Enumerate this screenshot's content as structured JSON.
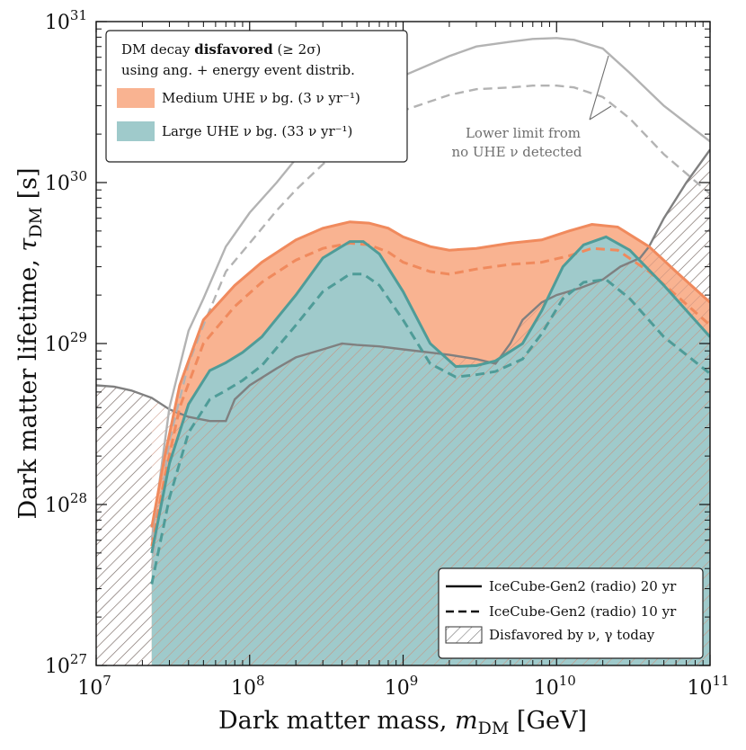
{
  "chart_data": {
    "type": "area",
    "xscale": "log",
    "yscale": "log",
    "xlim": [
      10000000.0,
      100000000000.0
    ],
    "ylim": [
      1e+27,
      1e+31
    ],
    "xlabel": "Dark matter mass, m_DM [GeV]",
    "ylabel": "Dark matter lifetime, τ_DM [s]",
    "x_ticks": [
      {
        "value": 10000000.0,
        "label_base": "10",
        "label_exp": "7"
      },
      {
        "value": 100000000.0,
        "label_base": "10",
        "label_exp": "8"
      },
      {
        "value": 1000000000.0,
        "label_base": "10",
        "label_exp": "9"
      },
      {
        "value": 10000000000.0,
        "label_base": "10",
        "label_exp": "10"
      },
      {
        "value": 100000000000.0,
        "label_base": "10",
        "label_exp": "11"
      }
    ],
    "y_ticks": [
      {
        "value": 1e+27,
        "label_base": "10",
        "label_exp": "27"
      },
      {
        "value": 1e+28,
        "label_base": "10",
        "label_exp": "28"
      },
      {
        "value": 1e+29,
        "label_base": "10",
        "label_exp": "29"
      },
      {
        "value": 1e+30,
        "label_base": "10",
        "label_exp": "30"
      },
      {
        "value": 1e+31,
        "label_base": "10",
        "label_exp": "31"
      }
    ],
    "grid": false,
    "legend_top": {
      "placement": "top-left",
      "title_line1_pre": "DM decay ",
      "title_line1_bold": "disfavored",
      "title_line1_post": " (≥ 2σ)",
      "title_line2": "using ang. + energy event distrib.",
      "entries": [
        {
          "label": "Medium UHE ν bg. (3 ν yr⁻¹)",
          "color": "#f9b391"
        },
        {
          "label": "Large UHE ν bg. (33 ν yr⁻¹)",
          "color": "#9fcacb"
        }
      ]
    },
    "legend_bottom": {
      "placement": "bottom-right",
      "entries": [
        {
          "label": "IceCube-Gen2 (radio) 20 yr",
          "style": "solid"
        },
        {
          "label": "IceCube-Gen2 (radio) 10 yr",
          "style": "dashed"
        },
        {
          "label": "Disfavored by ν, γ today",
          "style": "hatch"
        }
      ]
    },
    "annotation": {
      "line1": "Lower limit from",
      "line2": "no UHE ν detected"
    },
    "series": [
      {
        "name": "Medium UHE ν bg. (3 ν yr⁻¹)",
        "style": "solid",
        "color": "#f08a5d",
        "x": [
          23000000.0,
          28000000.0,
          35000000.0,
          50000000.0,
          80000000.0,
          120000000.0,
          200000000.0,
          300000000.0,
          450000000.0,
          600000000.0,
          800000000.0,
          1000000000.0,
          1500000000.0,
          2000000000.0,
          3000000000.0,
          5000000000.0,
          8000000000.0,
          12000000000.0,
          17000000000.0,
          25000000000.0,
          40000000000.0,
          60000000000.0,
          100000000000.0
        ],
        "y": [
          7.2e+27,
          2e+28,
          5.5e+28,
          1.4e+29,
          2.3e+29,
          3.2e+29,
          4.4e+29,
          5.2e+29,
          5.7e+29,
          5.6e+29,
          5.2e+29,
          4.6e+29,
          4e+29,
          3.8e+29,
          3.9e+29,
          4.2e+29,
          4.4e+29,
          5e+29,
          5.5e+29,
          5.3e+29,
          4e+29,
          2.8e+29,
          1.8e+29
        ]
      },
      {
        "name": "Medium UHE ν bg. (3 ν yr⁻¹)",
        "style": "dashed",
        "color": "#f08a5d",
        "x": [
          23000000.0,
          28000000.0,
          35000000.0,
          50000000.0,
          80000000.0,
          120000000.0,
          200000000.0,
          300000000.0,
          450000000.0,
          600000000.0,
          800000000.0,
          1000000000.0,
          1500000000.0,
          2000000000.0,
          3000000000.0,
          5000000000.0,
          8000000000.0,
          12000000000.0,
          17000000000.0,
          25000000000.0,
          40000000000.0,
          60000000000.0,
          100000000000.0
        ],
        "y": [
          5.5e+27,
          1.5e+28,
          4e+28,
          1e+29,
          1.7e+29,
          2.4e+29,
          3.3e+29,
          3.9e+29,
          4.2e+29,
          4.1e+29,
          3.7e+29,
          3.2e+29,
          2.8e+29,
          2.7e+29,
          2.9e+29,
          3.1e+29,
          3.2e+29,
          3.5e+29,
          3.9e+29,
          3.8e+29,
          2.8e+29,
          2e+29,
          1.3e+29
        ]
      },
      {
        "name": "Large UHE ν bg. (33 ν yr⁻¹)",
        "style": "solid",
        "color": "#4f9c98",
        "x": [
          23000000.0,
          30000000.0,
          40000000.0,
          55000000.0,
          70000000.0,
          90000000.0,
          120000000.0,
          200000000.0,
          300000000.0,
          450000000.0,
          550000000.0,
          700000000.0,
          1000000000.0,
          1500000000.0,
          2200000000.0,
          3000000000.0,
          4000000000.0,
          6000000000.0,
          8000000000.0,
          11000000000.0,
          15000000000.0,
          21000000000.0,
          30000000000.0,
          50000000000.0,
          100000000000.0
        ],
        "y": [
          5e+27,
          1.8e+28,
          4.2e+28,
          6.8e+28,
          7.6e+28,
          8.8e+28,
          1.1e+29,
          2e+29,
          3.4e+29,
          4.3e+29,
          4.3e+29,
          3.6e+29,
          2.1e+29,
          1e+29,
          7.2e+28,
          7.3e+28,
          7.8e+28,
          1e+29,
          1.6e+29,
          3e+29,
          4.1e+29,
          4.6e+29,
          3.8e+29,
          2.3e+29,
          1.1e+29
        ]
      },
      {
        "name": "Large UHE ν bg. (33 ν yr⁻¹)",
        "style": "dashed",
        "color": "#4f9c98",
        "x": [
          23000000.0,
          30000000.0,
          40000000.0,
          55000000.0,
          70000000.0,
          90000000.0,
          120000000.0,
          200000000.0,
          300000000.0,
          450000000.0,
          550000000.0,
          700000000.0,
          1000000000.0,
          1500000000.0,
          2200000000.0,
          3000000000.0,
          4000000000.0,
          6000000000.0,
          8000000000.0,
          11000000000.0,
          15000000000.0,
          21000000000.0,
          30000000000.0,
          50000000000.0,
          100000000000.0
        ],
        "y": [
          3.2e+27,
          1.1e+28,
          2.8e+28,
          4.5e+28,
          5.1e+28,
          5.9e+28,
          7.3e+28,
          1.3e+29,
          2.1e+29,
          2.7e+29,
          2.7e+29,
          2.3e+29,
          1.4e+29,
          7.5e+28,
          6.2e+28,
          6.4e+28,
          6.7e+28,
          8e+28,
          1.15e+29,
          1.9e+29,
          2.4e+29,
          2.5e+29,
          1.9e+29,
          1.1e+29,
          6.5e+28
        ]
      },
      {
        "name": "Lower limit from no UHE ν detected",
        "style": "solid",
        "color": "#b3b3b3",
        "x": [
          23000000.0,
          30000000.0,
          40000000.0,
          50000000.0,
          70000000.0,
          100000000.0,
          150000000.0,
          200000000.0,
          300000000.0,
          500000000.0,
          700000000.0,
          1000000000.0,
          2000000000.0,
          3000000000.0,
          5000000000.0,
          7000000000.0,
          10000000000.0,
          13000000000.0,
          20000000000.0,
          30000000000.0,
          50000000000.0,
          100000000000.0
        ],
        "y": [
          6e+27,
          4e+28,
          1.2e+29,
          1.9e+29,
          4e+29,
          6.5e+29,
          1e+30,
          1.4e+30,
          2e+30,
          3e+30,
          3.8e+30,
          4.6e+30,
          6.1e+30,
          7e+30,
          7.5e+30,
          7.8e+30,
          7.9e+30,
          7.7e+30,
          6.8e+30,
          4.8e+30,
          3e+30,
          1.8e+30
        ]
      },
      {
        "name": "Lower limit from no UHE ν detected",
        "style": "dashed",
        "color": "#b3b3b3",
        "x": [
          23000000.0,
          30000000.0,
          40000000.0,
          50000000.0,
          70000000.0,
          100000000.0,
          150000000.0,
          200000000.0,
          300000000.0,
          500000000.0,
          700000000.0,
          1000000000.0,
          2000000000.0,
          3000000000.0,
          5000000000.0,
          7000000000.0,
          10000000000.0,
          13000000000.0,
          20000000000.0,
          30000000000.0,
          50000000000.0,
          100000000000.0
        ],
        "y": [
          4e+27,
          2.5e+28,
          7.5e+28,
          1.3e+29,
          2.8e+29,
          4.2e+29,
          6.7e+29,
          9e+29,
          1.3e+30,
          1.9e+30,
          2.4e+30,
          2.8e+30,
          3.5e+30,
          3.8e+30,
          3.9e+30,
          4e+30,
          4e+30,
          3.9e+30,
          3.4e+30,
          2.5e+30,
          1.5e+30,
          8.5e+29
        ]
      },
      {
        "name": "Disfavored by ν, γ today",
        "style": "hatch",
        "color": "#808080",
        "x": [
          10000000.0,
          13000000.0,
          17000000.0,
          23000000.0,
          30000000.0,
          40000000.0,
          55000000.0,
          70000000.0,
          80000000.0,
          100000000.0,
          150000000.0,
          200000000.0,
          300000000.0,
          400000000.0,
          500000000.0,
          700000000.0,
          1000000000.0,
          2000000000.0,
          3000000000.0,
          4000000000.0,
          5000000000.0,
          6000000000.0,
          8000000000.0,
          10000000000.0,
          14000000000.0,
          20000000000.0,
          26000000000.0,
          35000000000.0,
          40000000000.0,
          50000000000.0,
          70000000000.0,
          100000000000.0
        ],
        "y": [
          5.5e+28,
          5.4e+28,
          5.1e+28,
          4.6e+28,
          3.9e+28,
          3.5e+28,
          3.3e+28,
          3.3e+28,
          4.5e+28,
          5.5e+28,
          7e+28,
          8.2e+28,
          9.2e+28,
          1e+29,
          9.8e+28,
          9.6e+28,
          9.2e+28,
          8.5e+28,
          8e+28,
          7.5e+28,
          1e+29,
          1.4e+29,
          1.8e+29,
          2e+29,
          2.2e+29,
          2.5e+29,
          3e+29,
          3.4e+29,
          4e+29,
          6e+29,
          1e+30,
          1.6e+30
        ]
      }
    ]
  }
}
